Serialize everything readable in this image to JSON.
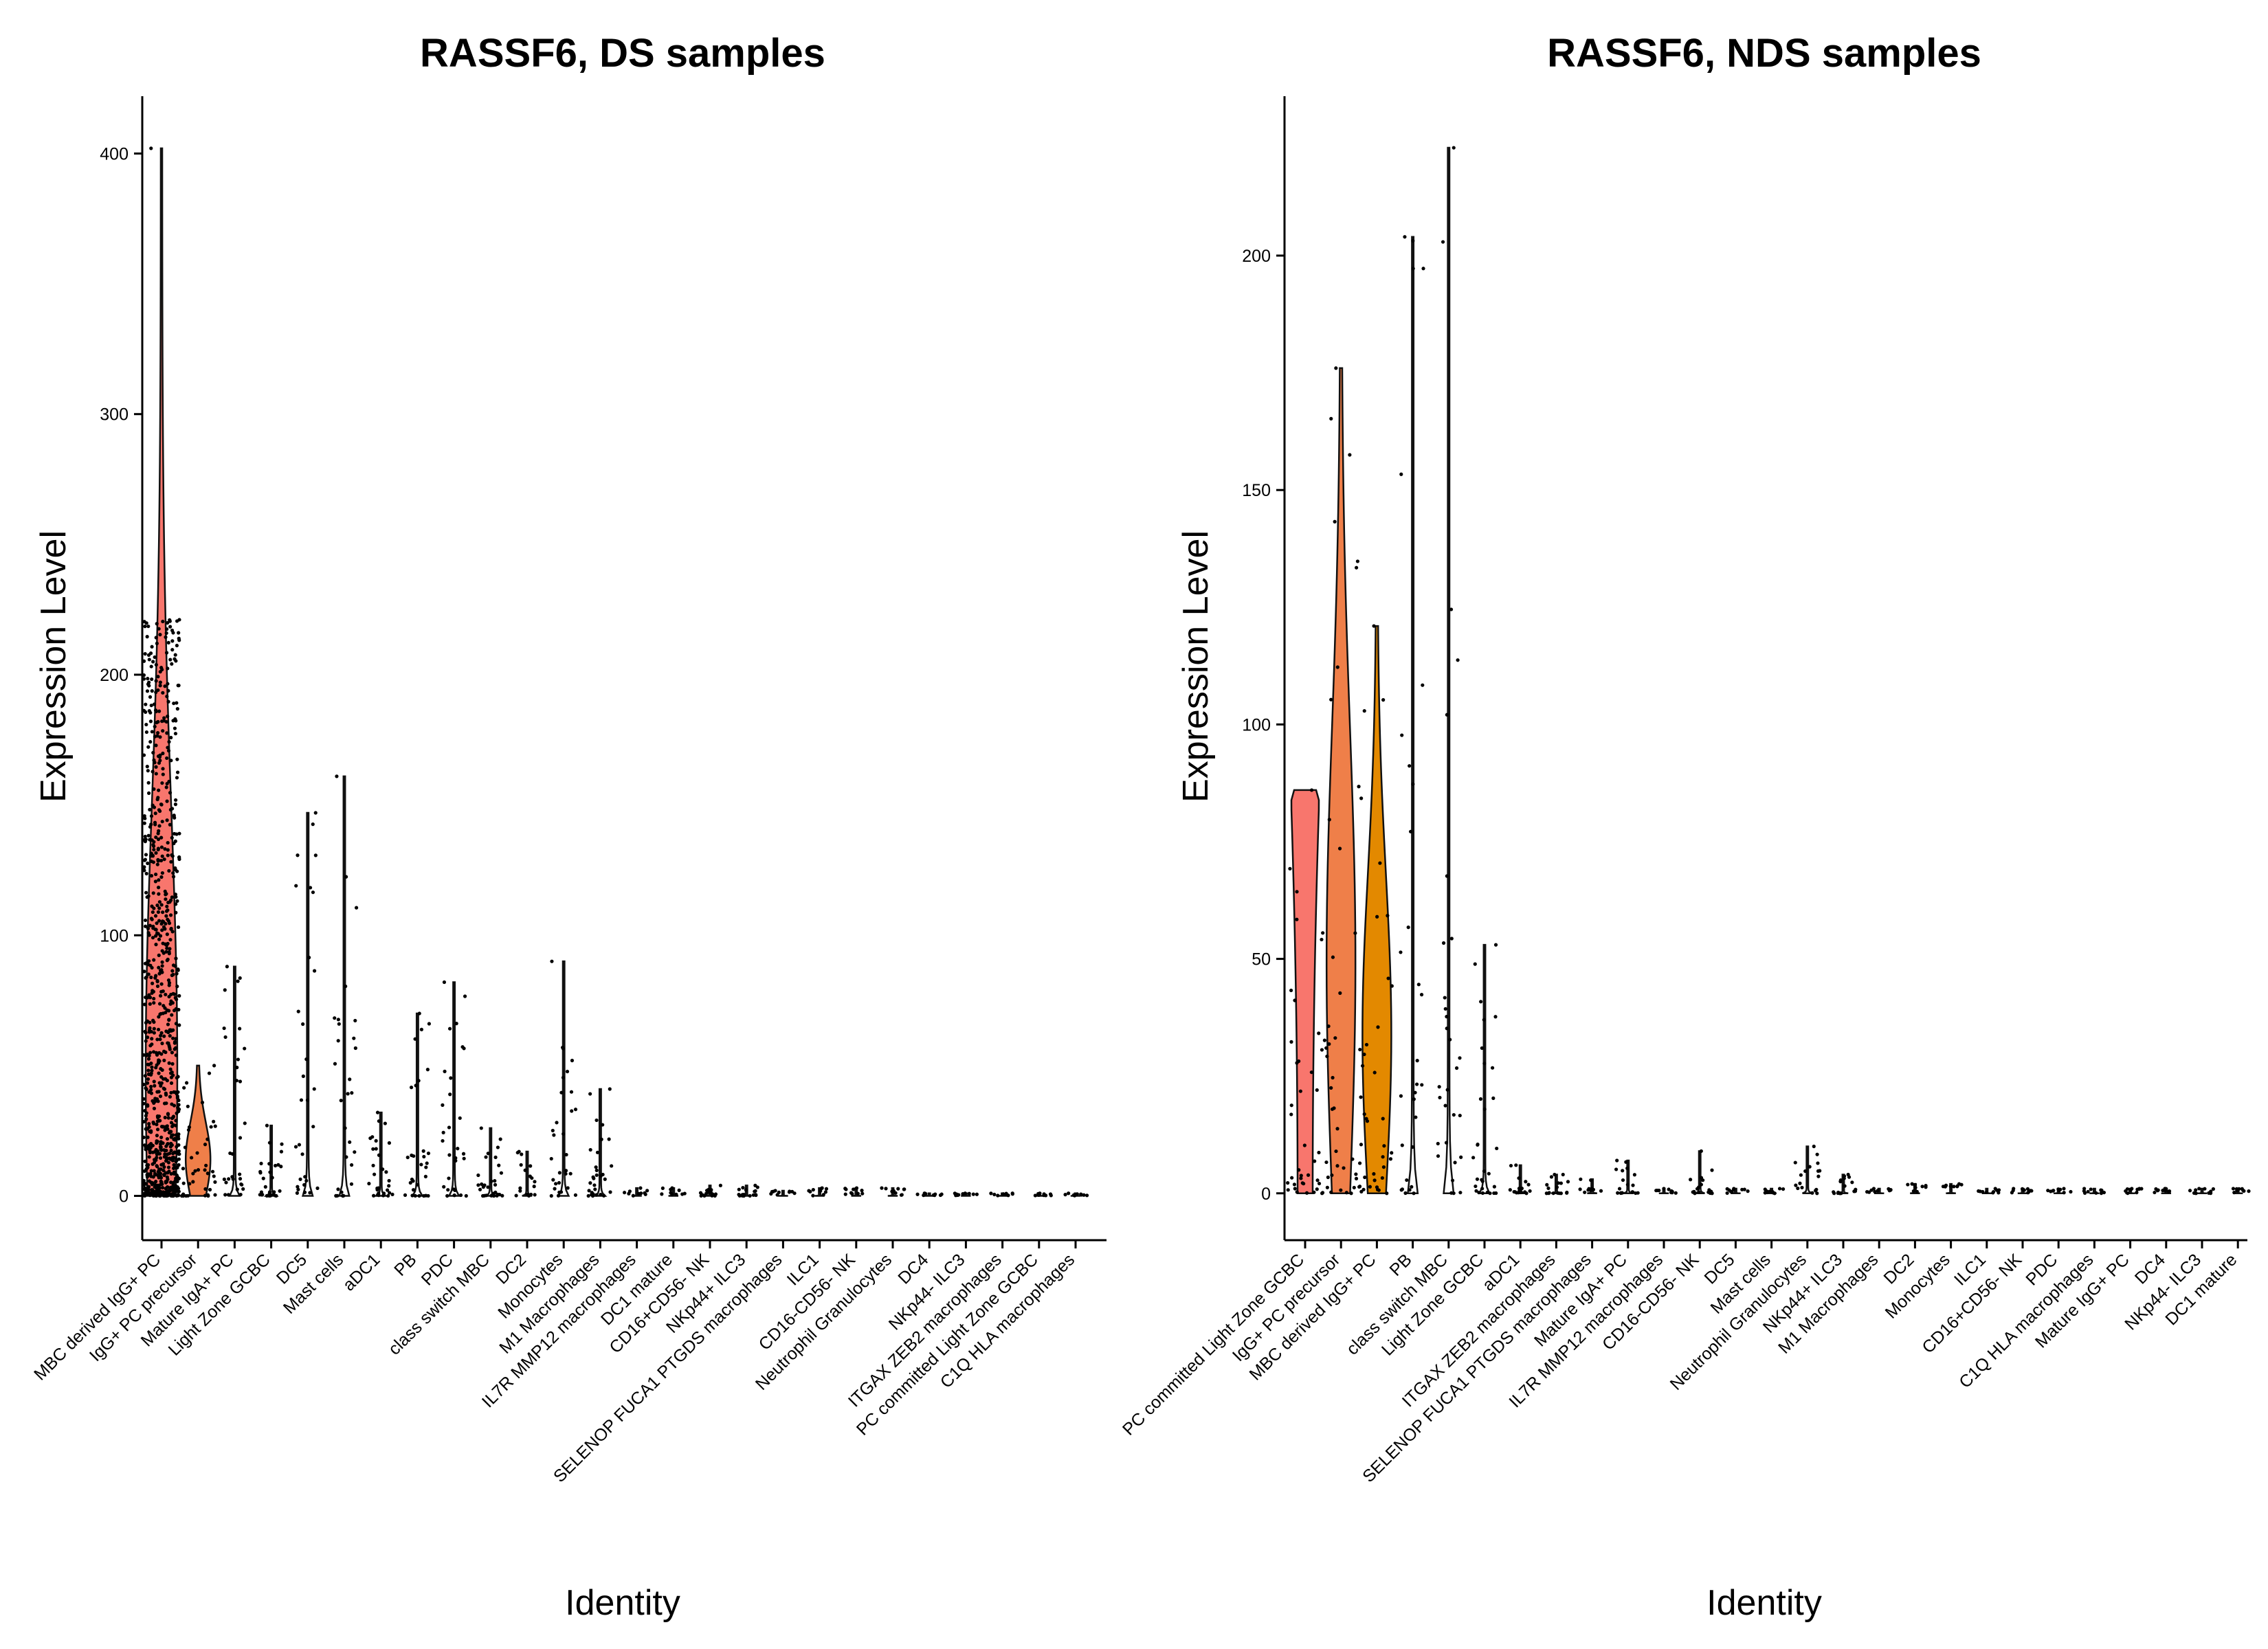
{
  "chart_data": [
    {
      "type": "violin",
      "title": "RASSF6, DS samples",
      "xlabel": "Identity",
      "ylabel": "Expression Level",
      "ylim": [
        -17,
        422
      ],
      "yticks": [
        0,
        100,
        200,
        300,
        400
      ],
      "grid": false,
      "categories": [
        "MBC derived IgG+ PC",
        "IgG+ PC precursor",
        "Mature IgA+ PC",
        "Light Zone GCBC",
        "DC5",
        "Mast cells",
        "aDC1",
        "PB",
        "PDC",
        "class switch MBC",
        "DC2",
        "Monocytes",
        "M1 Macrophages",
        "IL7R MMP12 macrophages",
        "DC1 mature",
        "CD16+CD56- NK",
        "NKp44+ ILC3",
        "SELENOP FUCA1 PTGDS macrophages",
        "ILC1",
        "CD16-CD56- NK",
        "Neutrophil Granulocytes",
        "DC4",
        "NKp44- ILC3",
        "ITGAX ZEB2 macrophages",
        "PC committed Light Zone GCBC",
        "C1Q HLA macrophages"
      ],
      "max": [
        402,
        50,
        88,
        27,
        147,
        161,
        32,
        70,
        82,
        26,
        17,
        90,
        41,
        3,
        3,
        4,
        4,
        2,
        3,
        3,
        3,
        1,
        1,
        1,
        1,
        1
      ],
      "violin_colors": [
        "#F8766D",
        "#EF7F49",
        null,
        null,
        null,
        null,
        null,
        null,
        null,
        null,
        null,
        null,
        null,
        null,
        null,
        null,
        null,
        null,
        null,
        null,
        null,
        null,
        null,
        null,
        null,
        null
      ]
    },
    {
      "type": "violin",
      "title": "RASSF6, NDS samples",
      "xlabel": "Identity",
      "ylabel": "Expression Level",
      "ylim": [
        -10,
        234
      ],
      "yticks": [
        0,
        50,
        100,
        150,
        200
      ],
      "grid": false,
      "categories": [
        "PC committed Light Zone GCBC",
        "IgG+ PC precursor",
        "MBC derived IgG+ PC",
        "PB",
        "class switch MBC",
        "Light Zone GCBC",
        "aDC1",
        "ITGAX ZEB2 macrophages",
        "SELENOP FUCA1 PTGDS macrophages",
        "Mature IgA+ PC",
        "IL7R MMP12 macrophages",
        "CD16-CD56- NK",
        "DC5",
        "Mast cells",
        "Neutrophil Granulocytes",
        "NKp44+ ILC3",
        "M1 Macrophages",
        "DC2",
        "Monocytes",
        "ILC1",
        "CD16+CD56- NK",
        "PDC",
        "C1Q HLA macrophages",
        "Mature IgG+ PC",
        "DC4",
        "NKp44- ILC3",
        "DC1 mature"
      ],
      "max": [
        86,
        176,
        121,
        204,
        223,
        53,
        6,
        4,
        3,
        7,
        1,
        9,
        1,
        1,
        10,
        4,
        1,
        2,
        2,
        1,
        1,
        1,
        1,
        1,
        1,
        1,
        1
      ],
      "violin_colors": [
        "#F8766D",
        "#EF7F49",
        "#E38900",
        null,
        null,
        null,
        null,
        null,
        null,
        null,
        null,
        null,
        null,
        null,
        null,
        null,
        null,
        null,
        null,
        null,
        null,
        null,
        null,
        null,
        null,
        null,
        null
      ]
    }
  ]
}
